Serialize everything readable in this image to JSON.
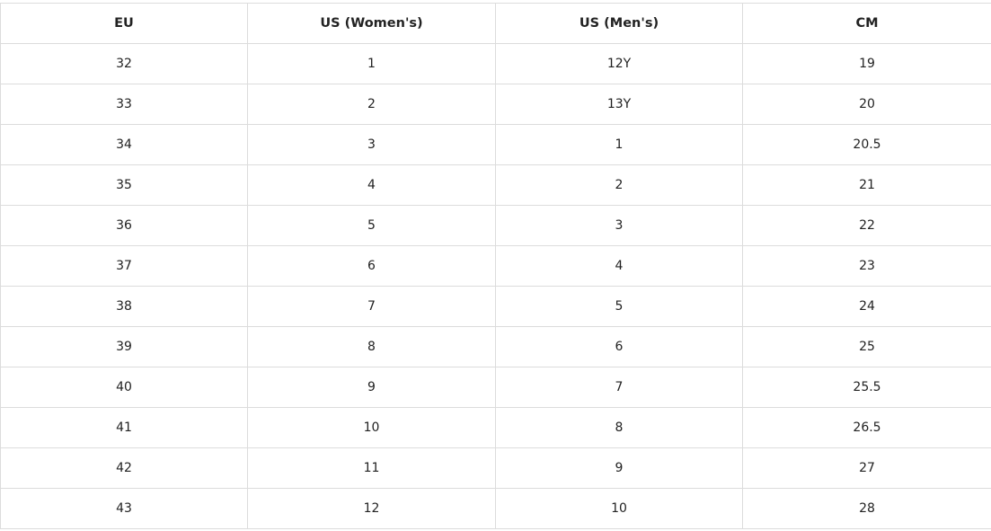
{
  "table": {
    "header": [
      "EU",
      "US (Women's)",
      "US (Men's)",
      "CM"
    ],
    "rows": [
      [
        "32",
        "1",
        "12Y",
        "19"
      ],
      [
        "33",
        "2",
        "13Y",
        "20"
      ],
      [
        "34",
        "3",
        "1",
        "20.5"
      ],
      [
        "35",
        "4",
        "2",
        "21"
      ],
      [
        "36",
        "5",
        "3",
        "22"
      ],
      [
        "37",
        "6",
        "4",
        "23"
      ],
      [
        "38",
        "7",
        "5",
        "24"
      ],
      [
        "39",
        "8",
        "6",
        "25"
      ],
      [
        "40",
        "9",
        "7",
        "25.5"
      ],
      [
        "41",
        "10",
        "8",
        "26.5"
      ],
      [
        "42",
        "11",
        "9",
        "27"
      ],
      [
        "43",
        "12",
        "10",
        "28"
      ]
    ]
  }
}
